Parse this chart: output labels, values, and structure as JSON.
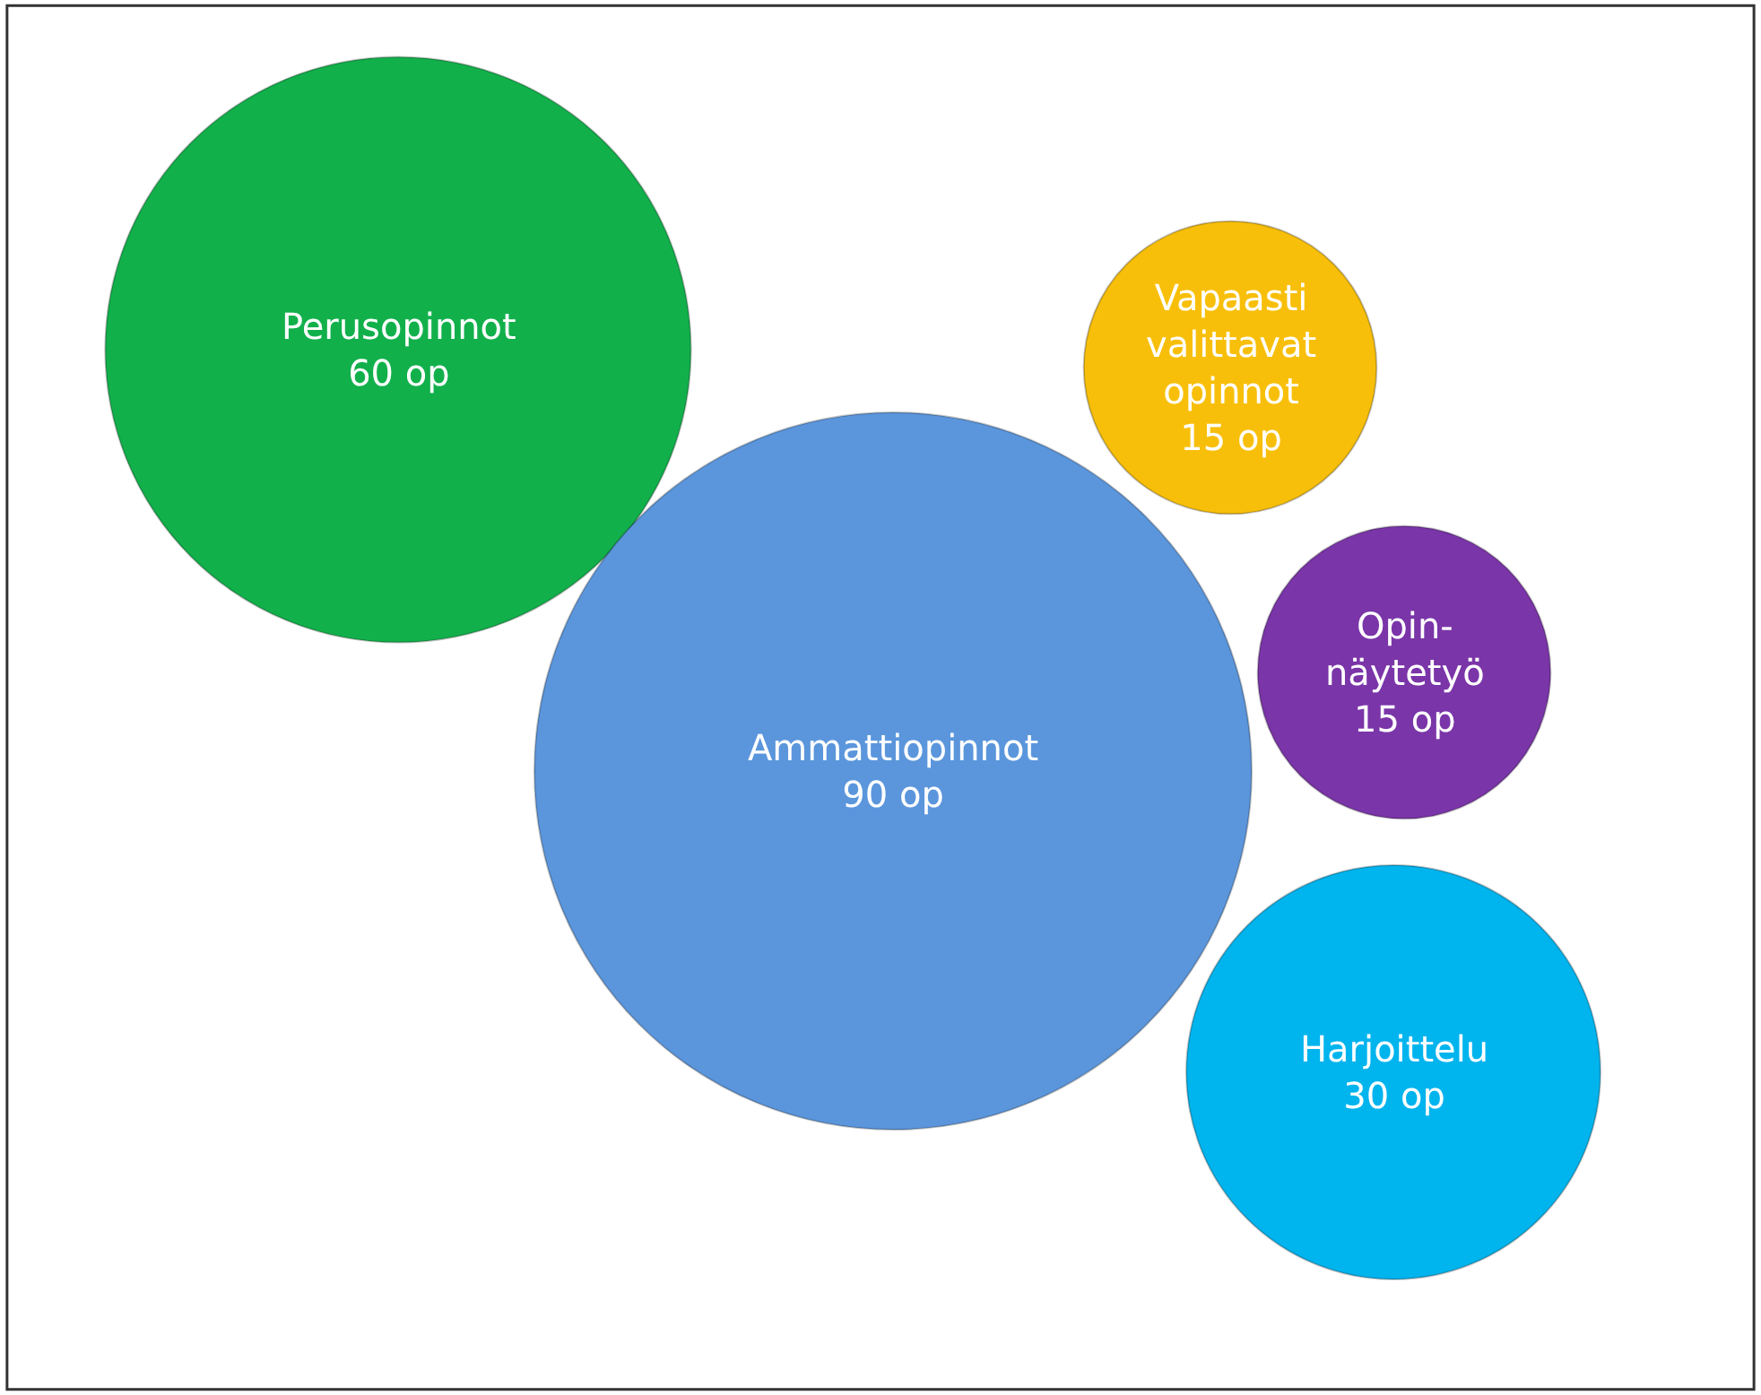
{
  "chart_data": {
    "type": "other",
    "categories": [
      "Perusopinnot",
      "Ammattiopinnot",
      "Vapaasti\nvalittavat\nopinnot",
      "Opin-\nnäytetyö",
      "Harjoittelu"
    ],
    "values": [
      60,
      90,
      15,
      15,
      30
    ],
    "value_labels": [
      "60 op",
      "90 op",
      "15 op",
      "15 op",
      "30 op"
    ],
    "colors": [
      "#12b04b",
      "#5b96dc",
      "#f8bf0a",
      "#7a35a8",
      "#00b4ee"
    ]
  }
}
